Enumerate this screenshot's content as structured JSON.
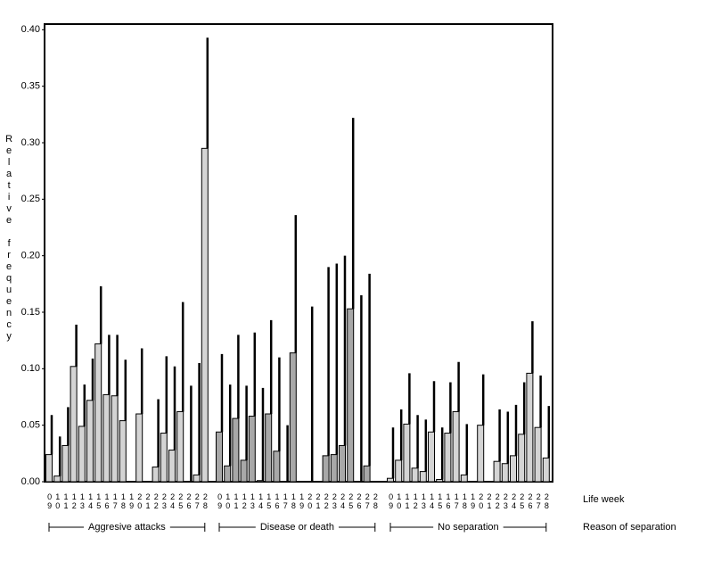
{
  "chart_data": {
    "type": "bar",
    "y_label": "Relative frequency",
    "x_label": "Life week",
    "group_label": "Reason of separation",
    "categories": [
      "09",
      "10",
      "11",
      "12",
      "13",
      "14",
      "15",
      "16",
      "17",
      "18",
      "19",
      "20",
      "21",
      "22",
      "23",
      "24",
      "25",
      "26",
      "27",
      "28"
    ],
    "ylim": [
      0,
      0.405
    ],
    "yticks": [
      {
        "value": 0,
        "label": "0.00"
      },
      {
        "value": 0.05,
        "label": "0.05"
      },
      {
        "value": 0.1,
        "label": "0.10"
      },
      {
        "value": 0.15,
        "label": "0.15"
      },
      {
        "value": 0.2,
        "label": "0.20"
      },
      {
        "value": 0.25,
        "label": "0.25"
      },
      {
        "value": 0.3,
        "label": "0.30"
      },
      {
        "value": 0.35,
        "label": "0.35"
      },
      {
        "value": 0.4,
        "label": "0.40"
      }
    ],
    "series": [
      {
        "name": "Aggresive attacks",
        "color": "#d4d4d4",
        "values": [
          0.024,
          0.005,
          0.032,
          0.102,
          0.049,
          0.072,
          0.122,
          0.077,
          0.076,
          0.054,
          null,
          0.06,
          null,
          0.013,
          0.043,
          0.028,
          0.062,
          0,
          0.006,
          0.295
        ],
        "errors": [
          0.035,
          0.035,
          0.034,
          0.037,
          0.037,
          0.037,
          0.051,
          0.053,
          0.054,
          0.054,
          null,
          0.058,
          null,
          0.06,
          0.068,
          0.074,
          0.097,
          0.085,
          0.099,
          0.098
        ]
      },
      {
        "name": "Disease or death",
        "color": "#a8a8a8",
        "values": [
          0.044,
          0.014,
          0.056,
          0.019,
          0.058,
          0.001,
          0.06,
          0.027,
          0,
          0.114,
          null,
          0,
          null,
          0.023,
          0.024,
          0.032,
          0.153,
          0,
          0.014,
          null
        ],
        "errors": [
          0.069,
          0.072,
          0.074,
          0.066,
          0.074,
          0.082,
          0.083,
          0.083,
          0.05,
          0.122,
          null,
          0.155,
          null,
          0.167,
          0.169,
          0.168,
          0.169,
          0.165,
          0.17,
          null
        ]
      },
      {
        "name": "No separation",
        "color": "#d4d4d4",
        "values": [
          0.003,
          0.019,
          0.051,
          0.012,
          0.009,
          0.044,
          0.002,
          0.043,
          0.062,
          0.006,
          null,
          0.05,
          null,
          0.018,
          0.016,
          0.023,
          0.042,
          0.096,
          0.048,
          0.021
        ],
        "errors": [
          0.045,
          0.045,
          0.045,
          0.047,
          0.046,
          0.045,
          0.046,
          0.045,
          0.044,
          0.045,
          null,
          0.045,
          null,
          0.046,
          0.046,
          0.045,
          0.046,
          0.046,
          0.046,
          0.046
        ]
      }
    ]
  }
}
